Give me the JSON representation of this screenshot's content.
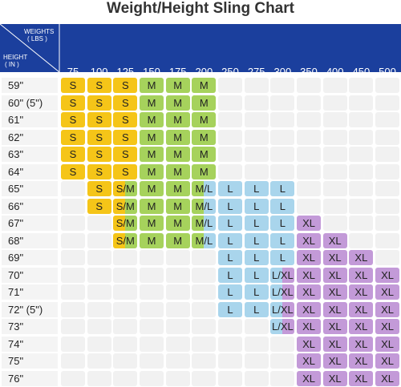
{
  "title": "Weight/Height Sling Chart",
  "header": {
    "weights": "WEIGHTS",
    "weights_unit": "( LBS )",
    "height": "HEIGHT",
    "height_unit": "( IN )"
  },
  "size_colors": {
    "S": "#f5c518",
    "M": "#a6d25c",
    "L": "#a9d5ec",
    "XL": "#c39ad8"
  },
  "table": {
    "columns": [
      "75",
      "100",
      "125",
      "150",
      "175",
      "200",
      "250",
      "275",
      "300",
      "350",
      "400",
      "450",
      "500"
    ],
    "rows": [
      {
        "label": "59\"",
        "cells": [
          "S",
          "S",
          "S",
          "M",
          "M",
          "M",
          null,
          null,
          null,
          null,
          null,
          null,
          null
        ]
      },
      {
        "label": "60\" (5\")",
        "cells": [
          "S",
          "S",
          "S",
          "M",
          "M",
          "M",
          null,
          null,
          null,
          null,
          null,
          null,
          null
        ]
      },
      {
        "label": "61\"",
        "cells": [
          "S",
          "S",
          "S",
          "M",
          "M",
          "M",
          null,
          null,
          null,
          null,
          null,
          null,
          null
        ]
      },
      {
        "label": "62\"",
        "cells": [
          "S",
          "S",
          "S",
          "M",
          "M",
          "M",
          null,
          null,
          null,
          null,
          null,
          null,
          null
        ]
      },
      {
        "label": "63\"",
        "cells": [
          "S",
          "S",
          "S",
          "M",
          "M",
          "M",
          null,
          null,
          null,
          null,
          null,
          null,
          null
        ]
      },
      {
        "label": "64\"",
        "cells": [
          "S",
          "S",
          "S",
          "M",
          "M",
          "M",
          null,
          null,
          null,
          null,
          null,
          null,
          null
        ]
      },
      {
        "label": "65\"",
        "cells": [
          null,
          "S",
          "S/M",
          "M",
          "M",
          "M/L",
          "L",
          "L",
          "L",
          null,
          null,
          null,
          null
        ]
      },
      {
        "label": "66\"",
        "cells": [
          null,
          "S",
          "S/M",
          "M",
          "M",
          "M/L",
          "L",
          "L",
          "L",
          null,
          null,
          null,
          null
        ]
      },
      {
        "label": "67\"",
        "cells": [
          null,
          null,
          "S/M",
          "M",
          "M",
          "M/L",
          "L",
          "L",
          "L",
          "XL",
          null,
          null,
          null
        ]
      },
      {
        "label": "68\"",
        "cells": [
          null,
          null,
          "S/M",
          "M",
          "M",
          "M/L",
          "L",
          "L",
          "L",
          "XL",
          "XL",
          null,
          null
        ]
      },
      {
        "label": "69\"",
        "cells": [
          null,
          null,
          null,
          null,
          null,
          null,
          "L",
          "L",
          "L",
          "XL",
          "XL",
          "XL",
          null
        ]
      },
      {
        "label": "70\"",
        "cells": [
          null,
          null,
          null,
          null,
          null,
          null,
          "L",
          "L",
          "L/XL",
          "XL",
          "XL",
          "XL",
          "XL"
        ]
      },
      {
        "label": "71\"",
        "cells": [
          null,
          null,
          null,
          null,
          null,
          null,
          "L",
          "L",
          "L/XL",
          "XL",
          "XL",
          "XL",
          "XL"
        ]
      },
      {
        "label": "72\" (5\")",
        "cells": [
          null,
          null,
          null,
          null,
          null,
          null,
          "L",
          "L",
          "L/XL",
          "XL",
          "XL",
          "XL",
          "XL"
        ]
      },
      {
        "label": "73\"",
        "cells": [
          null,
          null,
          null,
          null,
          null,
          null,
          null,
          null,
          "L/XL",
          "XL",
          "XL",
          "XL",
          "XL"
        ]
      },
      {
        "label": "74\"",
        "cells": [
          null,
          null,
          null,
          null,
          null,
          null,
          null,
          null,
          null,
          "XL",
          "XL",
          "XL",
          "XL"
        ]
      },
      {
        "label": "75\"",
        "cells": [
          null,
          null,
          null,
          null,
          null,
          null,
          null,
          null,
          null,
          "XL",
          "XL",
          "XL",
          "XL"
        ]
      },
      {
        "label": "76\"",
        "cells": [
          null,
          null,
          null,
          null,
          null,
          null,
          null,
          null,
          null,
          "XL",
          "XL",
          "XL",
          "XL"
        ]
      }
    ]
  }
}
